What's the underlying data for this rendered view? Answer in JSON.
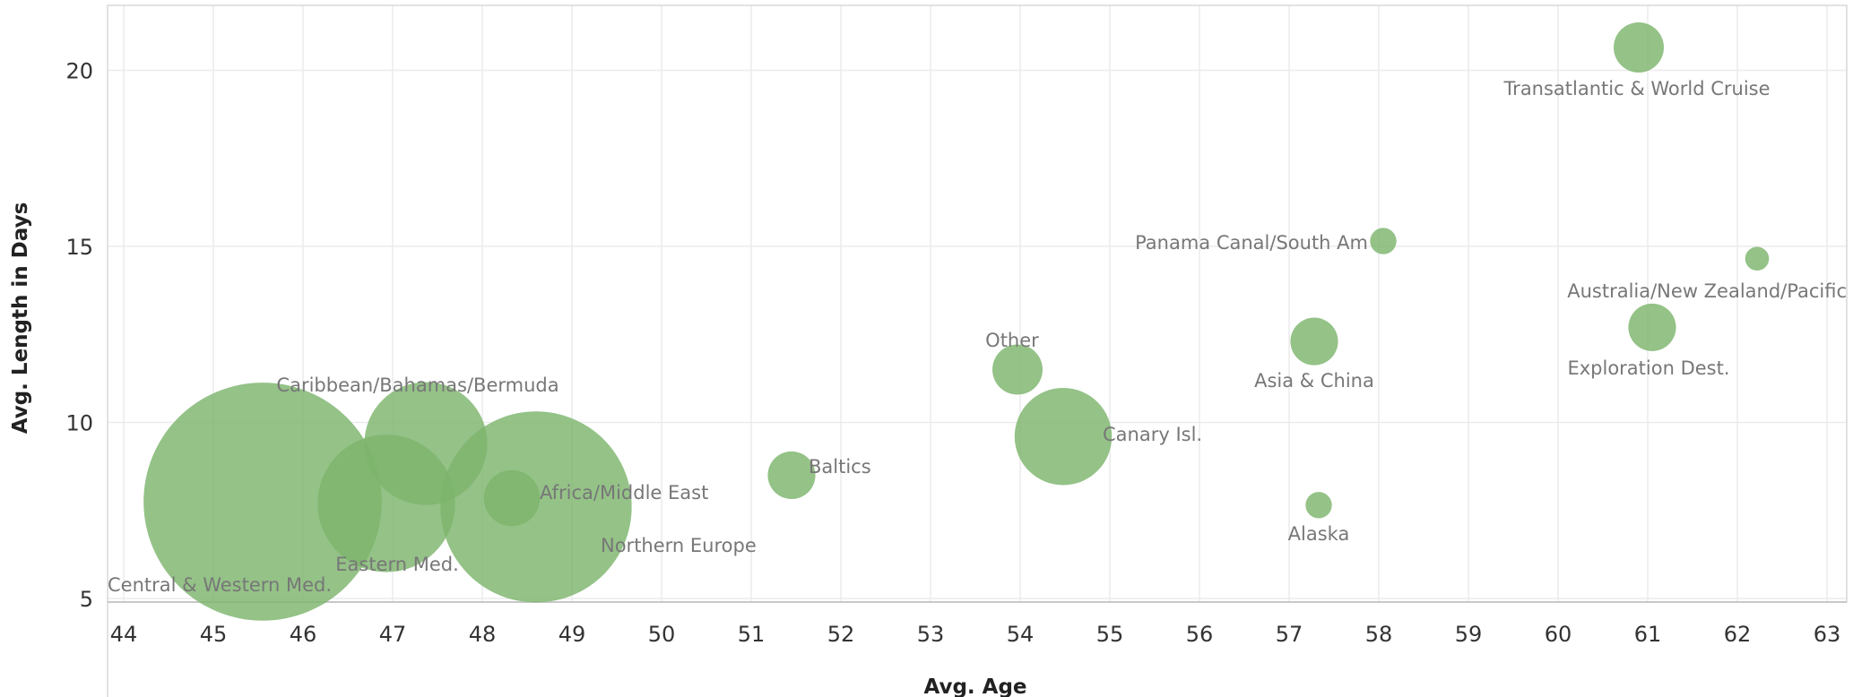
{
  "chart_data": {
    "type": "scatter",
    "xlabel": "Avg. Age",
    "ylabel": "Avg. Length in Days",
    "xlim": [
      43.8,
      63.2
    ],
    "ylim": [
      4.5,
      21.9
    ],
    "xticks": [
      44,
      45,
      46,
      47,
      48,
      49,
      50,
      51,
      52,
      53,
      54,
      55,
      56,
      57,
      58,
      59,
      60,
      61,
      62,
      63
    ],
    "yticks": [
      5,
      10,
      15,
      20
    ],
    "grid": true,
    "bubble_size_note_hidden": false,
    "color": "#7cb46c",
    "points": [
      {
        "label": "Central & Western Med.",
        "x": 45.55,
        "y": 7.75,
        "size": 90
      },
      {
        "label": "Eastern Med.",
        "x": 46.93,
        "y": 7.7,
        "size": 30
      },
      {
        "label": "Caribbean/Bahamas/Bermuda",
        "x": 47.37,
        "y": 9.4,
        "size": 24
      },
      {
        "label": "",
        "x": 48.33,
        "y": 7.85,
        "size": 5
      },
      {
        "label": "Africa/Middle East",
        "x": 48.6,
        "y": 7.6,
        "size": 58
      },
      {
        "label": "Northern Europe",
        "x": 48.6,
        "y": 7.6,
        "size": 0
      },
      {
        "label": "Baltics",
        "x": 51.45,
        "y": 8.5,
        "size": 3.6
      },
      {
        "label": "Other",
        "x": 53.97,
        "y": 11.5,
        "size": 4.0
      },
      {
        "label": "Canary Isl.",
        "x": 54.48,
        "y": 9.6,
        "size": 15
      },
      {
        "label": "Asia & China",
        "x": 57.28,
        "y": 12.3,
        "size": 3.6
      },
      {
        "label": "Alaska",
        "x": 57.33,
        "y": 7.65,
        "size": 1.1
      },
      {
        "label": "Panama Canal/South Am",
        "x": 58.05,
        "y": 15.15,
        "size": 1.1
      },
      {
        "label": "Transatlantic & World Cruise",
        "x": 60.9,
        "y": 20.65,
        "size": 4.0
      },
      {
        "label": "Exploration Dest.",
        "x": 61.05,
        "y": 12.7,
        "size": 3.6
      },
      {
        "label": "Australia/New Zealand/Pacific",
        "x": 62.22,
        "y": 14.65,
        "size": 0.9
      }
    ]
  }
}
